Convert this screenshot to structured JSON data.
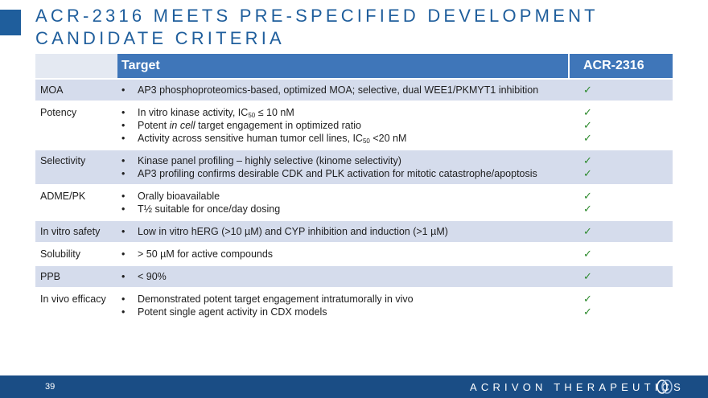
{
  "slide": {
    "title": "ACR-2316 MEETS PRE-SPECIFIED DEVELOPMENT CANDIDATE CRITERIA",
    "page_number": "39",
    "brand": "ACRIVON THERAPEUTICS"
  },
  "table": {
    "headers": {
      "target": "Target",
      "compound": "ACR-2316"
    },
    "check_icon": "check-mark-icon",
    "check_color": "#2d8a2d",
    "rows": [
      {
        "label": "MOA",
        "bullets": [
          "AP3 phosphoproteomics-based, optimized MOA; selective, dual WEE1/PKMYT1 inhibition"
        ]
      },
      {
        "label": "Potency",
        "bullets": [
          "In vitro kinase activity, IC50 ≤ 10 nM",
          "Potent in cell target engagement in optimized ratio",
          "Activity across sensitive human tumor cell lines, IC50 <20 nM"
        ]
      },
      {
        "label": "Selectivity",
        "bullets": [
          "Kinase panel profiling – highly selective (kinome selectivity)",
          "AP3 profiling confirms desirable CDK and PLK activation for mitotic catastrophe/apoptosis"
        ]
      },
      {
        "label": "ADME/PK",
        "bullets": [
          "Orally bioavailable",
          "T½ suitable for once/day dosing"
        ]
      },
      {
        "label": "In vitro safety",
        "bullets": [
          "Low in vitro hERG (>10 µM) and CYP inhibition and induction (>1 µM)"
        ]
      },
      {
        "label": "Solubility",
        "bullets": [
          "> 50 µM for active compounds"
        ]
      },
      {
        "label": "PPB",
        "bullets": [
          "< 90%"
        ]
      },
      {
        "label": "In vivo efficacy",
        "bullets": [
          "Demonstrated potent target engagement intratumorally in vivo",
          "Potent single agent activity in CDX models"
        ]
      }
    ]
  },
  "colors": {
    "title": "#1f5e9c",
    "header": "#3f76b9",
    "row_shade": "#d5dcec",
    "footer": "#1a4d85"
  }
}
